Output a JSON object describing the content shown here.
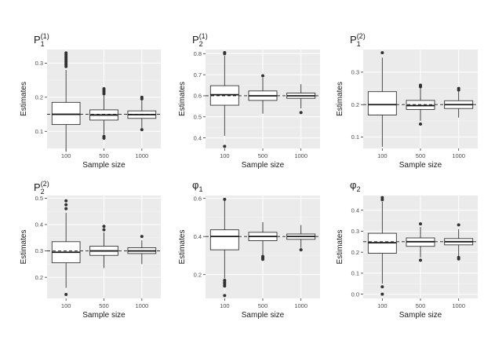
{
  "chart_data": [
    {
      "type": "boxplot",
      "title": {
        "main": "P",
        "sub": "1",
        "sup": "(1)"
      },
      "xlabel": "Sample size",
      "ylabel": "Estimates",
      "categories": [
        "100",
        "500",
        "1000"
      ],
      "ylim": [
        0.05,
        0.34
      ],
      "yticks": [
        0.1,
        0.2,
        0.3
      ],
      "yticklabels": [
        "0.1",
        "0.2",
        "0.3"
      ],
      "reference": 0.15,
      "boxes": [
        {
          "min": 0.04,
          "q1": 0.12,
          "median": 0.15,
          "q3": 0.185,
          "max": 0.28,
          "outliers": [
            0.29,
            0.295,
            0.3,
            0.305,
            0.31,
            0.315,
            0.32,
            0.325,
            0.33
          ]
        },
        {
          "min": 0.09,
          "q1": 0.133,
          "median": 0.148,
          "q3": 0.163,
          "max": 0.205,
          "outliers": [
            0.21,
            0.215,
            0.22,
            0.225,
            0.085,
            0.08
          ]
        },
        {
          "min": 0.11,
          "q1": 0.138,
          "median": 0.149,
          "q3": 0.16,
          "max": 0.19,
          "outliers": [
            0.195,
            0.2,
            0.105
          ]
        }
      ]
    },
    {
      "type": "boxplot",
      "title": {
        "main": "P",
        "sub": "2",
        "sup": "(1)"
      },
      "xlabel": "Sample size",
      "ylabel": "Estimates",
      "categories": [
        "100",
        "500",
        "1000"
      ],
      "ylim": [
        0.35,
        0.82
      ],
      "yticks": [
        0.4,
        0.5,
        0.6,
        0.7,
        0.8
      ],
      "yticklabels": [
        "0.4",
        "0.5",
        "0.6",
        "0.7",
        "0.8"
      ],
      "reference": 0.6,
      "boxes": [
        {
          "min": 0.41,
          "q1": 0.555,
          "median": 0.605,
          "q3": 0.648,
          "max": 0.79,
          "outliers": [
            0.8,
            0.805,
            0.36
          ]
        },
        {
          "min": 0.515,
          "q1": 0.578,
          "median": 0.6,
          "q3": 0.623,
          "max": 0.685,
          "outliers": [
            0.695
          ]
        },
        {
          "min": 0.54,
          "q1": 0.588,
          "median": 0.6,
          "q3": 0.613,
          "max": 0.655,
          "outliers": [
            0.52
          ]
        }
      ]
    },
    {
      "type": "boxplot",
      "title": {
        "main": "P",
        "sub": "1",
        "sup": "(2)"
      },
      "xlabel": "Sample size",
      "ylabel": "Estimates",
      "categories": [
        "100",
        "500",
        "1000"
      ],
      "ylim": [
        0.065,
        0.37
      ],
      "yticks": [
        0.1,
        0.2,
        0.3
      ],
      "yticklabels": [
        "0.1",
        "0.2",
        "0.3"
      ],
      "reference": 0.2,
      "boxes": [
        {
          "min": 0.07,
          "q1": 0.168,
          "median": 0.2,
          "q3": 0.24,
          "max": 0.345,
          "outliers": [
            0.36
          ]
        },
        {
          "min": 0.15,
          "q1": 0.185,
          "median": 0.197,
          "q3": 0.213,
          "max": 0.25,
          "outliers": [
            0.255,
            0.26,
            0.14
          ]
        },
        {
          "min": 0.16,
          "q1": 0.188,
          "median": 0.2,
          "q3": 0.212,
          "max": 0.24,
          "outliers": [
            0.245,
            0.25
          ]
        }
      ]
    },
    {
      "type": "boxplot",
      "title": {
        "main": "P",
        "sub": "2",
        "sup": "(2)"
      },
      "xlabel": "Sample size",
      "ylabel": "Estimates",
      "categories": [
        "100",
        "500",
        "1000"
      ],
      "ylim": [
        0.12,
        0.51
      ],
      "yticks": [
        0.2,
        0.3,
        0.4,
        0.5
      ],
      "yticklabels": [
        "0.2",
        "0.3",
        "0.4",
        "0.5"
      ],
      "reference": 0.3,
      "boxes": [
        {
          "min": 0.16,
          "q1": 0.255,
          "median": 0.295,
          "q3": 0.335,
          "max": 0.445,
          "outliers": [
            0.46,
            0.475,
            0.49,
            0.135
          ]
        },
        {
          "min": 0.235,
          "q1": 0.283,
          "median": 0.3,
          "q3": 0.318,
          "max": 0.37,
          "outliers": [
            0.38,
            0.393
          ]
        },
        {
          "min": 0.25,
          "q1": 0.29,
          "median": 0.3,
          "q3": 0.312,
          "max": 0.34,
          "outliers": [
            0.355
          ]
        }
      ]
    },
    {
      "type": "boxplot",
      "title": {
        "main": "φ",
        "sub": "1",
        "sup": ""
      },
      "xlabel": "Sample size",
      "ylabel": "Estimates",
      "categories": [
        "100",
        "500",
        "1000"
      ],
      "ylim": [
        0.075,
        0.615
      ],
      "yticks": [
        0.2,
        0.4,
        0.6
      ],
      "yticklabels": [
        "0.2",
        "0.4",
        "0.6"
      ],
      "reference": 0.4,
      "boxes": [
        {
          "min": 0.18,
          "q1": 0.33,
          "median": 0.4,
          "q3": 0.435,
          "max": 0.59,
          "outliers": [
            0.595,
            0.17,
            0.16,
            0.15,
            0.14,
            0.09
          ]
        },
        {
          "min": 0.3,
          "q1": 0.378,
          "median": 0.4,
          "q3": 0.422,
          "max": 0.475,
          "outliers": [
            0.295,
            0.29,
            0.285,
            0.28
          ]
        },
        {
          "min": 0.34,
          "q1": 0.385,
          "median": 0.4,
          "q3": 0.413,
          "max": 0.46,
          "outliers": [
            0.33
          ]
        }
      ]
    },
    {
      "type": "boxplot",
      "title": {
        "main": "φ",
        "sub": "2",
        "sup": ""
      },
      "xlabel": "Sample size",
      "ylabel": "Estimates",
      "categories": [
        "100",
        "500",
        "1000"
      ],
      "ylim": [
        -0.02,
        0.47
      ],
      "yticks": [
        0.0,
        0.1,
        0.2,
        0.3,
        0.4
      ],
      "yticklabels": [
        "0.0",
        "0.1",
        "0.2",
        "0.3",
        "0.4"
      ],
      "reference": 0.25,
      "boxes": [
        {
          "min": 0.05,
          "q1": 0.195,
          "median": 0.245,
          "q3": 0.29,
          "max": 0.44,
          "outliers": [
            0.45,
            0.46,
            0.035,
            0.0
          ]
        },
        {
          "min": 0.175,
          "q1": 0.228,
          "median": 0.25,
          "q3": 0.268,
          "max": 0.32,
          "outliers": [
            0.335,
            0.162
          ]
        },
        {
          "min": 0.18,
          "q1": 0.235,
          "median": 0.25,
          "q3": 0.265,
          "max": 0.31,
          "outliers": [
            0.33,
            0.175,
            0.168
          ]
        }
      ]
    }
  ]
}
